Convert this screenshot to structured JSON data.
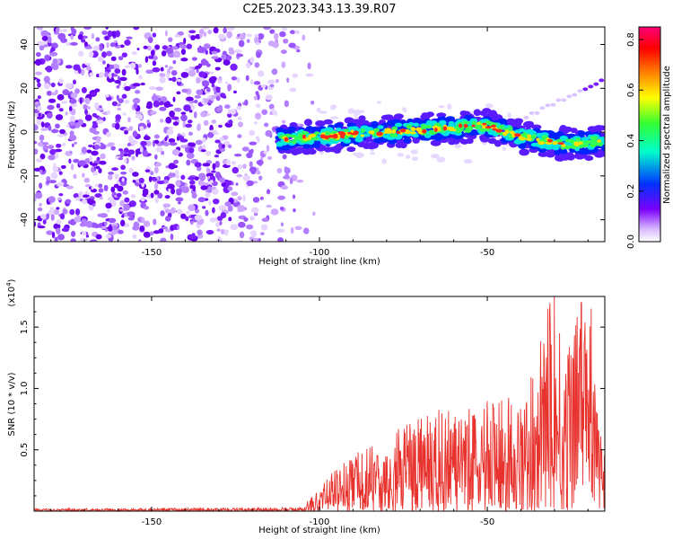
{
  "title": "C2E5.2023.343.13.39.R07",
  "chart_data": [
    {
      "type": "heatmap",
      "name": "spectrogram",
      "xlabel": "Height of straight line (km)",
      "ylabel": "Frequency (Hz)",
      "xlim": [
        -185,
        -15
      ],
      "ylim": [
        -50,
        48
      ],
      "xticks": [
        -150,
        -100,
        -50
      ],
      "yticks": [
        -40,
        -20,
        0,
        20,
        40
      ],
      "description": "Noisy purple speckle for heights below about -103 km; a bright narrow band near 0 Hz from about -110 km to -15 km, rising slightly toward -50 km then dipping to about -5 Hz near -20 km; faint streak rising to about 25 Hz near -20 km.",
      "band": {
        "x": [
          -112,
          -100,
          -90,
          -80,
          -70,
          -60,
          -50,
          -40,
          -30,
          -20,
          -15
        ],
        "center_hz": [
          -3,
          -2,
          -1,
          0,
          1,
          2,
          3,
          -2,
          -5,
          -5,
          -4
        ]
      },
      "colorbar": {
        "label": "Normalized spectral amplitude",
        "range": [
          0,
          0.85
        ],
        "ticks": [
          "0.0",
          "0.2",
          "0.4",
          "0.6",
          "0.8"
        ]
      }
    },
    {
      "type": "line",
      "name": "snr",
      "xlabel": "Height of straight line (km)",
      "ylabel": "SNR (10 * v/v)",
      "y_multiplier": "(x10^4)",
      "xlim": [
        -185,
        -15
      ],
      "ylim": [
        0,
        17500
      ],
      "xticks": [
        -150,
        -100,
        -50
      ],
      "ytick_labels": [
        "0.5",
        "1.0",
        "1.5"
      ],
      "ytick_values": [
        5000,
        10000,
        15000
      ],
      "color": "#e8322d",
      "envelope": {
        "x": [
          -185,
          -105,
          -102,
          -95,
          -85,
          -75,
          -65,
          -55,
          -45,
          -38,
          -33,
          -30,
          -27,
          -23,
          -20,
          -17,
          -15
        ],
        "max": [
          200,
          300,
          1500,
          3500,
          5500,
          7000,
          8500,
          8500,
          9500,
          10000,
          16500,
          17500,
          12000,
          17000,
          16500,
          12000,
          6000
        ]
      },
      "peaks": [
        {
          "x": -30,
          "y": 17500
        },
        {
          "x": -28.5,
          "y": 14500
        },
        {
          "x": -32,
          "y": 16500
        },
        {
          "x": -22,
          "y": 17000
        },
        {
          "x": -19,
          "y": 16500
        },
        {
          "x": -33,
          "y": 12500
        },
        {
          "x": -24.5,
          "y": 12500
        }
      ]
    }
  ]
}
